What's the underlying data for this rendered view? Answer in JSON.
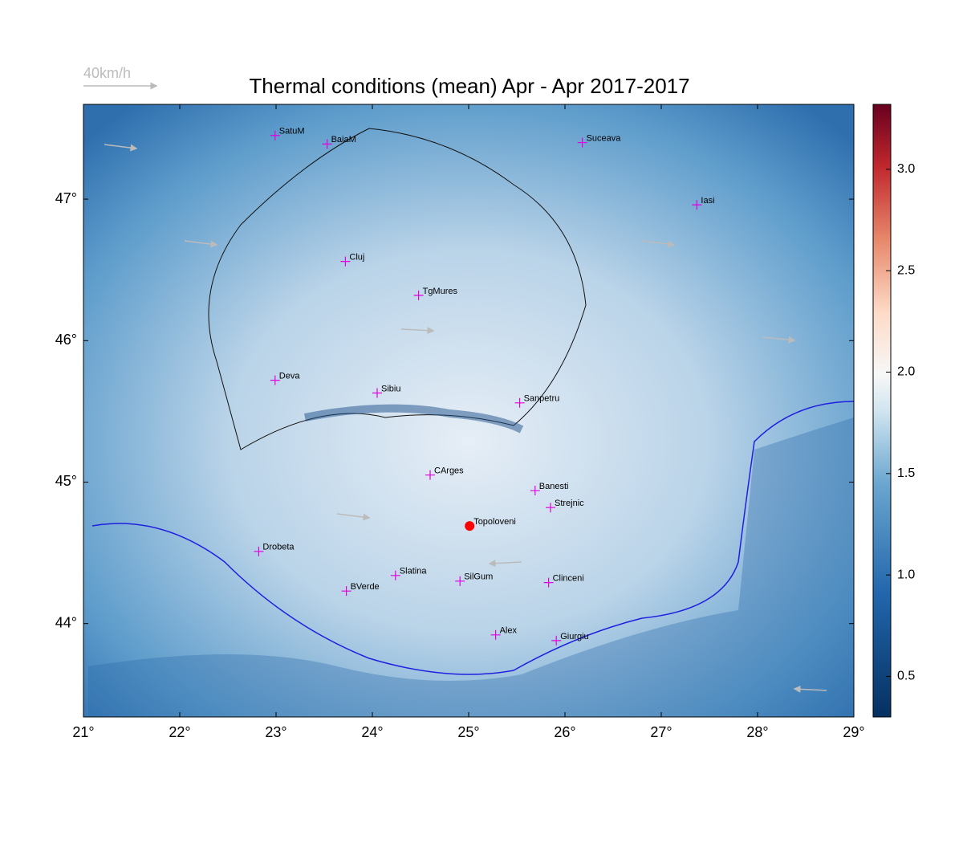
{
  "chart_data": {
    "type": "map",
    "title": "Thermal conditions (mean) Apr - Apr  2017-2017",
    "wind_scale_label": "40km/h",
    "xlim": [
      21,
      29
    ],
    "ylim": [
      43.34,
      47.67
    ],
    "xticks": [
      {
        "value": 21,
        "label": "21°"
      },
      {
        "value": 22,
        "label": "22°"
      },
      {
        "value": 23,
        "label": "23°"
      },
      {
        "value": 24,
        "label": "24°"
      },
      {
        "value": 25,
        "label": "25°"
      },
      {
        "value": 26,
        "label": "26°"
      },
      {
        "value": 27,
        "label": "27°"
      },
      {
        "value": 28,
        "label": "28°"
      },
      {
        "value": 29,
        "label": "29°"
      }
    ],
    "yticks": [
      {
        "value": 44,
        "label": "44°"
      },
      {
        "value": 45,
        "label": "45°"
      },
      {
        "value": 46,
        "label": "46°"
      },
      {
        "value": 47,
        "label": "47°"
      }
    ],
    "colorbar_lim": [
      0.3,
      3.32
    ],
    "colorbar_ticks": [
      0.5,
      {
        "value": 1,
        "label": "1.0"
      },
      1.5,
      {
        "value": 2,
        "label": "2.0"
      },
      2.5,
      {
        "value": 3,
        "label": "3.0"
      }
    ],
    "cities": [
      {
        "name": "SatuM",
        "lon": 22.99,
        "lat": 47.45,
        "color": "#e000e0",
        "marker": "cross"
      },
      {
        "name": "BaiaM",
        "lon": 23.53,
        "lat": 47.39,
        "color": "#e000e0",
        "marker": "cross"
      },
      {
        "name": "Suceava",
        "lon": 26.18,
        "lat": 47.4,
        "color": "#e000e0",
        "marker": "cross"
      },
      {
        "name": "Iasi",
        "lon": 27.37,
        "lat": 46.96,
        "color": "#e000e0",
        "marker": "cross"
      },
      {
        "name": "Cluj",
        "lon": 23.72,
        "lat": 46.56,
        "color": "#e000e0",
        "marker": "cross"
      },
      {
        "name": "TgMures",
        "lon": 24.48,
        "lat": 46.32,
        "color": "#e000e0",
        "marker": "cross"
      },
      {
        "name": "Deva",
        "lon": 22.99,
        "lat": 45.72,
        "color": "#e000e0",
        "marker": "cross"
      },
      {
        "name": "Sibiu",
        "lon": 24.05,
        "lat": 45.63,
        "color": "#e000e0",
        "marker": "cross"
      },
      {
        "name": "Sanpetru",
        "lon": 25.53,
        "lat": 45.56,
        "color": "#e000e0",
        "marker": "cross"
      },
      {
        "name": "CArges",
        "lon": 24.6,
        "lat": 45.05,
        "color": "#e000e0",
        "marker": "cross"
      },
      {
        "name": "Banesti",
        "lon": 25.69,
        "lat": 44.94,
        "color": "#e000e0",
        "marker": "cross"
      },
      {
        "name": "Strejnic",
        "lon": 25.85,
        "lat": 44.82,
        "color": "#e000e0",
        "marker": "cross"
      },
      {
        "name": "Topoloveni",
        "lon": 25.01,
        "lat": 44.69,
        "color": "#ff0000",
        "marker": "dot"
      },
      {
        "name": "Drobeta",
        "lon": 22.82,
        "lat": 44.51,
        "color": "#e000e0",
        "marker": "cross"
      },
      {
        "name": "Slatina",
        "lon": 24.24,
        "lat": 44.34,
        "color": "#e000e0",
        "marker": "cross"
      },
      {
        "name": "SilGum",
        "lon": 24.91,
        "lat": 44.3,
        "color": "#e000e0",
        "marker": "cross"
      },
      {
        "name": "Clinceni",
        "lon": 25.83,
        "lat": 44.29,
        "color": "#e000e0",
        "marker": "cross"
      },
      {
        "name": "BVerde",
        "lon": 23.73,
        "lat": 44.23,
        "color": "#e000e0",
        "marker": "cross"
      },
      {
        "name": "Alex",
        "lon": 25.28,
        "lat": 43.92,
        "color": "#e000e0",
        "marker": "cross"
      },
      {
        "name": "Giurgiu",
        "lon": 25.91,
        "lat": 43.88,
        "color": "#e000e0",
        "marker": "cross"
      }
    ]
  }
}
